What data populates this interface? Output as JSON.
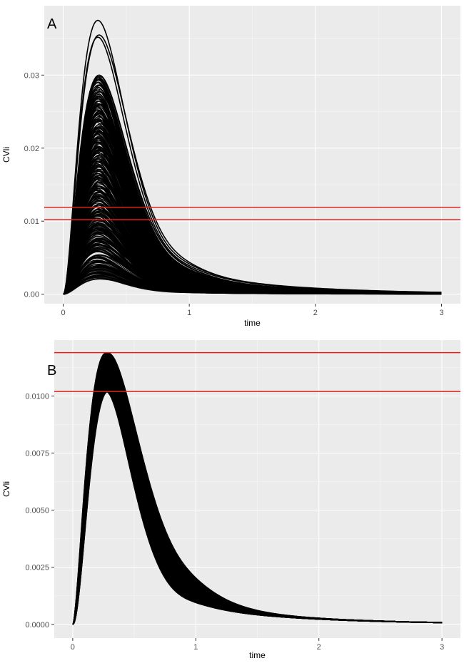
{
  "colors": {
    "curve": "#000000",
    "reference_line": "#e0201b",
    "panel_background": "#ebebeb",
    "grid": "#ffffff"
  },
  "chart_data": [
    {
      "type": "line",
      "panel_label": "A",
      "xlabel": "time",
      "ylabel": "CVli",
      "xlim": [
        -0.15,
        3.15
      ],
      "ylim": [
        -0.0013,
        0.0395
      ],
      "x_ticks": [
        0,
        1,
        2,
        3
      ],
      "x_tick_labels": [
        "0",
        "1",
        "2",
        "3"
      ],
      "y_ticks": [
        0.0,
        0.01,
        0.02,
        0.03
      ],
      "y_tick_labels": [
        "0.00",
        "0.01",
        "0.02",
        "0.03"
      ],
      "grid": true,
      "legend": "none",
      "description_of_series": "large ensemble of gamma-shaped response curves; peaks near t=0.28, peak heights spread from about 0.002 to 0.0375",
      "peak_time": 0.28,
      "peak_range": [
        0.0022,
        0.0375
      ],
      "highlighted_peaks": [
        0.0375,
        0.0355,
        0.0352,
        0.03,
        0.0295
      ],
      "reference_lines": [
        0.0119,
        0.0102
      ]
    },
    {
      "type": "line",
      "panel_label": "B",
      "xlabel": "time",
      "ylabel": "CVli",
      "xlim": [
        -0.15,
        3.15
      ],
      "ylim": [
        -0.0006,
        0.01245
      ],
      "x_ticks": [
        0,
        1,
        2,
        3
      ],
      "x_tick_labels": [
        "0",
        "1",
        "2",
        "3"
      ],
      "y_ticks": [
        0.0,
        0.0025,
        0.005,
        0.0075,
        0.01
      ],
      "y_tick_labels": [
        "0.0000",
        "0.0025",
        "0.0050",
        "0.0075",
        "0.0100"
      ],
      "grid": true,
      "legend": "none",
      "description_of_series": "narrow ensemble of response curves constrained between reference lines; peaks near t=0.28, peak heights 0.0102 to 0.0119",
      "peak_time": 0.28,
      "peak_range": [
        0.0102,
        0.0119
      ],
      "reference_lines": [
        0.0119,
        0.0102
      ]
    }
  ]
}
